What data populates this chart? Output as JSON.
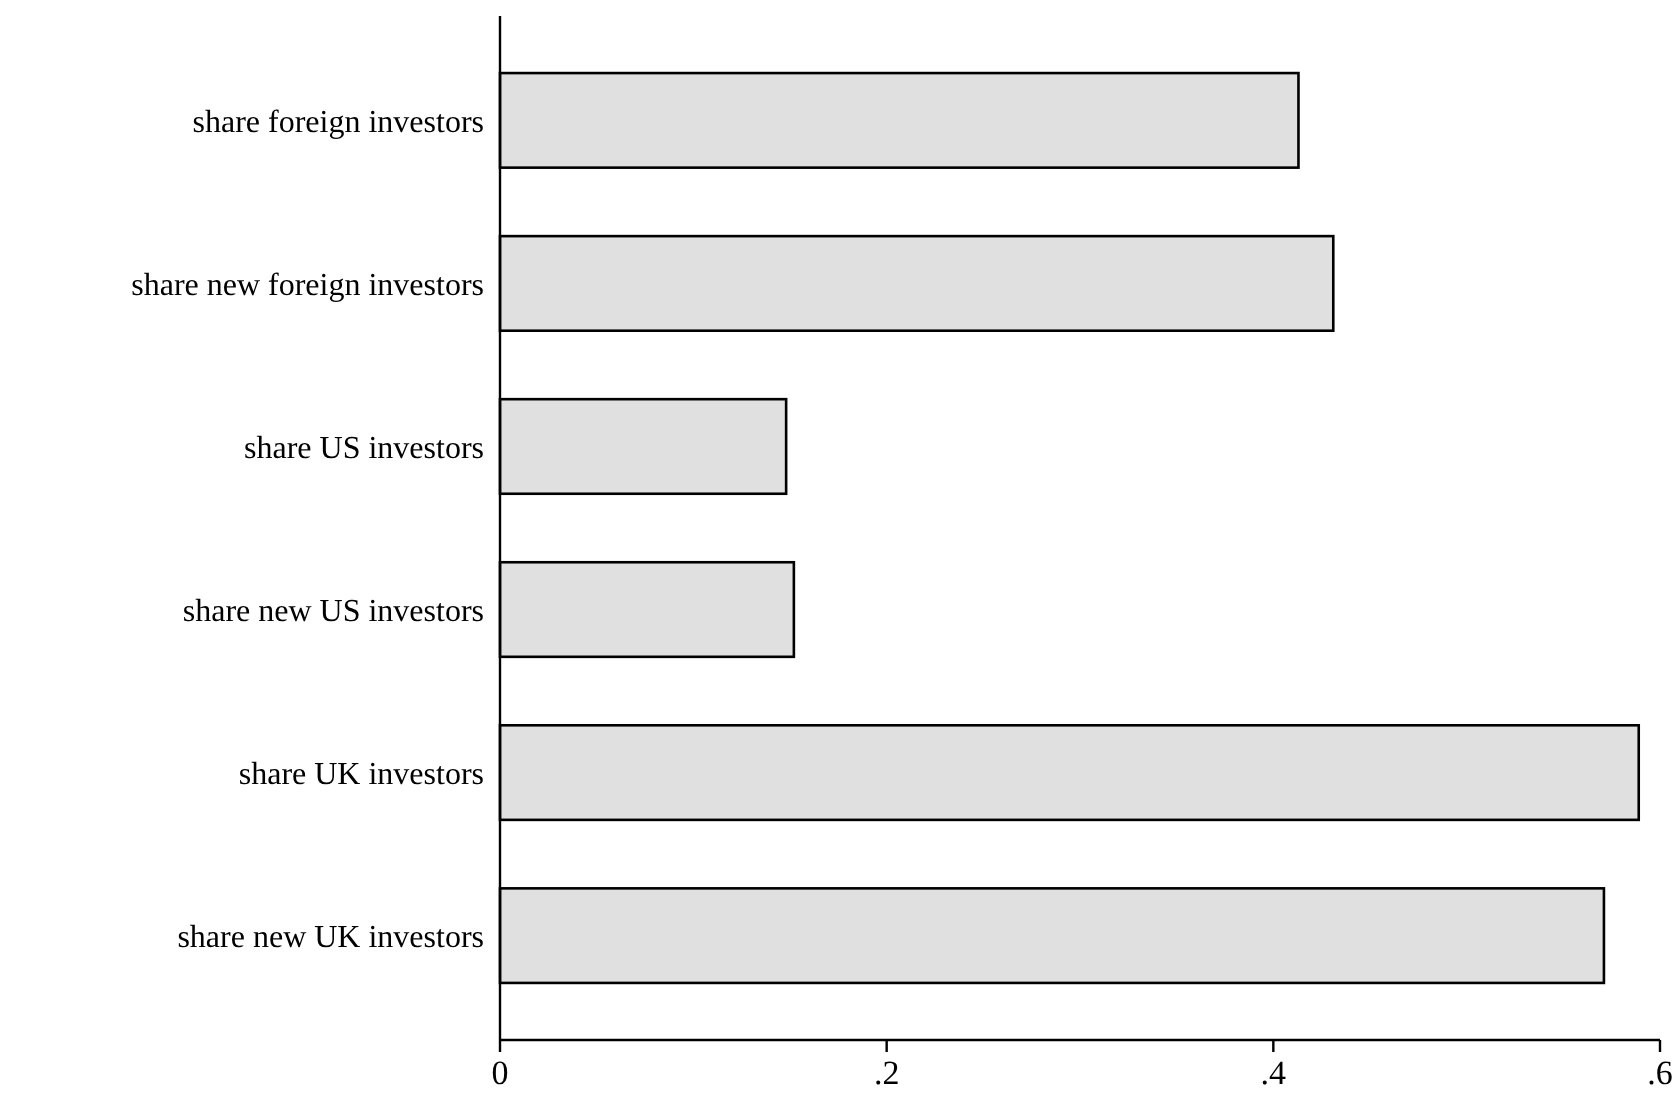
{
  "chart_data": {
    "type": "bar",
    "orientation": "horizontal",
    "categories": [
      "share foreign investors",
      "share new foreign investors",
      "share US investors",
      "share new US investors",
      "share UK investors",
      "share new UK investors"
    ],
    "values": [
      0.413,
      0.431,
      0.148,
      0.152,
      0.589,
      0.571
    ],
    "color": "#e0e0e0",
    "xlim": [
      0,
      0.6
    ],
    "xticks": [
      {
        "value": 0,
        "label": "0"
      },
      {
        "value": 0.2,
        "label": ".2"
      },
      {
        "value": 0.4,
        "label": ".4"
      },
      {
        "value": 0.6,
        "label": ".6"
      }
    ],
    "grid": false
  }
}
